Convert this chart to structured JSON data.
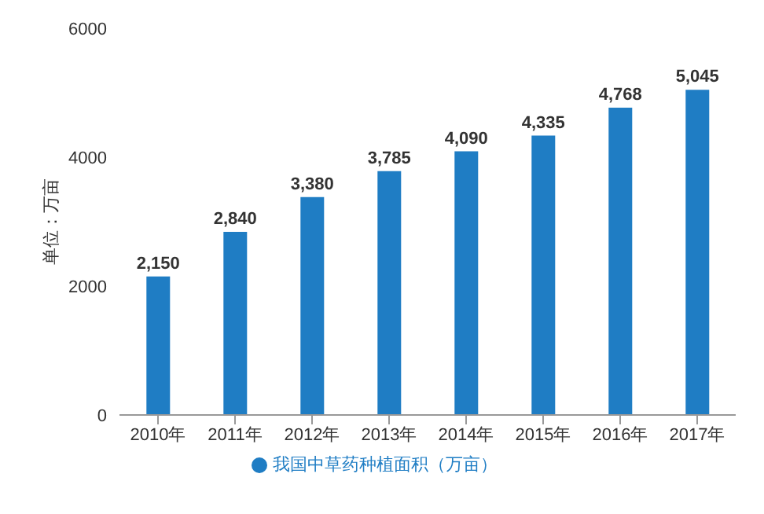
{
  "chart_data": {
    "type": "bar",
    "ylabel": "单位：万亩",
    "categories": [
      "2010年",
      "2011年",
      "2012年",
      "2013年",
      "2014年",
      "2015年",
      "2016年",
      "2017年"
    ],
    "series": [
      {
        "name": "我国中草药种植面积（万亩）",
        "color": "#1f7dc4",
        "values": [
          2150,
          2840,
          3380,
          3785,
          4090,
          4335,
          4768,
          5045
        ],
        "value_labels": [
          "2,150",
          "2,840",
          "3,380",
          "3,785",
          "4,090",
          "4,335",
          "4,768",
          "5,045"
        ]
      }
    ],
    "ylim": [
      0,
      6000
    ],
    "yticks": [
      0,
      2000,
      4000,
      6000
    ],
    "grid": false,
    "legend": "bottom"
  }
}
